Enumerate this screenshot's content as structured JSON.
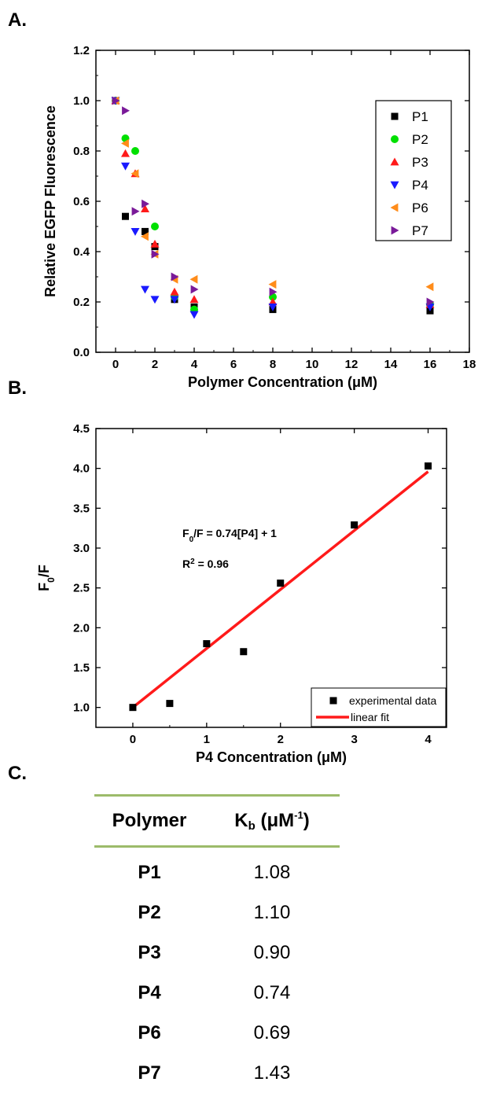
{
  "panels": {
    "a": "A.",
    "b": "B.",
    "c": "C."
  },
  "chart_data": [
    {
      "type": "scatter",
      "xlabel": "Polymer Concentration (μM)",
      "ylabel": "Relative EGFP Fluorescence",
      "xlim": [
        -1,
        18
      ],
      "ylim": [
        0.0,
        1.2
      ],
      "xticks": [
        0,
        2,
        4,
        6,
        8,
        10,
        12,
        14,
        16,
        18
      ],
      "yticks": [
        0.0,
        0.2,
        0.4,
        0.6,
        0.8,
        1.0,
        1.2
      ],
      "grid": false,
      "legend_placement": "top-right",
      "series": [
        {
          "name": "P1",
          "marker": "square",
          "color": "#000000",
          "x": [
            0,
            0.5,
            1.5,
            2,
            3,
            4,
            8,
            16
          ],
          "y": [
            1.0,
            0.54,
            0.48,
            0.42,
            0.21,
            0.18,
            0.17,
            0.165
          ]
        },
        {
          "name": "P2",
          "marker": "circle",
          "color": "#00e000",
          "x": [
            0,
            0.5,
            1,
            2,
            3,
            4,
            8,
            16
          ],
          "y": [
            1.0,
            0.85,
            0.8,
            0.5,
            0.22,
            0.17,
            0.22,
            0.19
          ]
        },
        {
          "name": "P3",
          "marker": "triangle-up",
          "color": "#ff1a1a",
          "x": [
            0,
            0.5,
            1,
            1.5,
            2,
            3,
            4,
            8,
            16
          ],
          "y": [
            1.0,
            0.79,
            0.71,
            0.57,
            0.43,
            0.24,
            0.21,
            0.2,
            0.19
          ]
        },
        {
          "name": "P4",
          "marker": "triangle-down",
          "color": "#1a1aff",
          "x": [
            0,
            0.5,
            1,
            1.5,
            2,
            3,
            4,
            8,
            16
          ],
          "y": [
            1.0,
            0.74,
            0.48,
            0.25,
            0.21,
            0.21,
            0.15,
            0.18,
            0.18
          ]
        },
        {
          "name": "P6",
          "marker": "triangle-left",
          "color": "#ff8c1a",
          "x": [
            0,
            0.5,
            1,
            1.5,
            2,
            3,
            4,
            8,
            16
          ],
          "y": [
            1.0,
            0.83,
            0.71,
            0.46,
            0.39,
            0.29,
            0.29,
            0.27,
            0.26
          ]
        },
        {
          "name": "P7",
          "marker": "triangle-right",
          "color": "#7a1a99",
          "x": [
            0,
            0.5,
            1,
            1.5,
            2,
            3,
            4,
            8,
            16
          ],
          "y": [
            1.0,
            0.96,
            0.56,
            0.59,
            0.39,
            0.3,
            0.25,
            0.24,
            0.2
          ]
        }
      ]
    },
    {
      "type": "scatter",
      "xlabel": "P4 Concentration (μM)",
      "ylabel_main": "F",
      "ylabel_sub": "0",
      "ylabel_tail": "/F",
      "xlim": [
        -0.5,
        4.25
      ],
      "ylim": [
        0.75,
        4.5
      ],
      "xticks": [
        0,
        1,
        2,
        3,
        4
      ],
      "yticks": [
        1.0,
        1.5,
        2.0,
        2.5,
        3.0,
        3.5,
        4.0,
        4.5
      ],
      "grid": false,
      "legend_placement": "bottom-right",
      "series": [
        {
          "name": "experimental data",
          "marker": "square",
          "color": "#000000",
          "x": [
            0,
            0.5,
            1,
            1.5,
            2,
            3,
            4
          ],
          "y": [
            1.0,
            1.05,
            1.8,
            1.7,
            2.56,
            3.29,
            4.03
          ]
        },
        {
          "name": "linear fit",
          "type": "line",
          "color": "#ff1a1a",
          "x": [
            0,
            4
          ],
          "y": [
            1.0,
            3.96
          ]
        }
      ],
      "annotations": {
        "eq_pre": "F",
        "eq_sub": "0",
        "eq_post": "/F = 0.74[P4] + 1",
        "r2_pre": "R",
        "r2_sup": "2",
        "r2_post": " = 0.96"
      }
    },
    {
      "type": "table",
      "columns": {
        "polymer": "Polymer",
        "kb_main": "K",
        "kb_sub": "b",
        "kb_unit": " (μM",
        "kb_sup": "-1",
        "kb_close": ")"
      },
      "rows": [
        {
          "polymer": "P1",
          "kb": "1.08"
        },
        {
          "polymer": "P2",
          "kb": "1.10"
        },
        {
          "polymer": "P3",
          "kb": "0.90"
        },
        {
          "polymer": "P4",
          "kb": "0.74"
        },
        {
          "polymer": "P6",
          "kb": "0.69"
        },
        {
          "polymer": "P7",
          "kb": "1.43"
        }
      ]
    }
  ]
}
